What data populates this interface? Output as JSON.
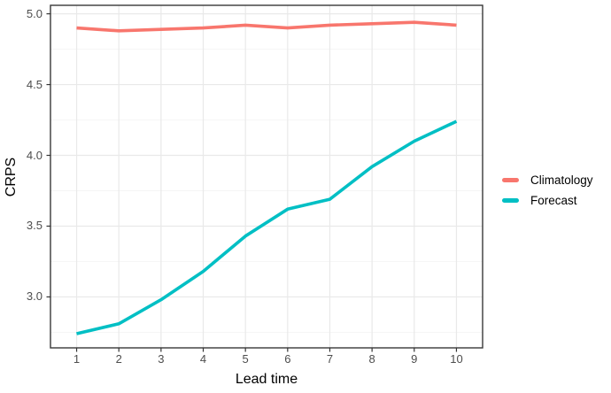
{
  "chart_data": {
    "type": "line",
    "title": "",
    "xlabel": "Lead time",
    "ylabel": "CRPS",
    "x": [
      1,
      2,
      3,
      4,
      5,
      6,
      7,
      8,
      9,
      10
    ],
    "series": [
      {
        "name": "Climatology",
        "color": "#F8766D",
        "values": [
          4.9,
          4.88,
          4.89,
          4.9,
          4.92,
          4.9,
          4.92,
          4.93,
          4.94,
          4.92
        ]
      },
      {
        "name": "Forecast",
        "color": "#00BFC4",
        "values": [
          2.74,
          2.81,
          2.98,
          3.18,
          3.43,
          3.62,
          3.69,
          3.92,
          4.1,
          4.24
        ]
      }
    ],
    "xlim": [
      0.38,
      10.62
    ],
    "ylim": [
      2.64,
      5.06
    ],
    "x_ticks": [
      "1",
      "2",
      "3",
      "4",
      "5",
      "6",
      "7",
      "8",
      "9",
      "10"
    ],
    "y_ticks": [
      "3.0",
      "3.5",
      "4.0",
      "4.5",
      "5.0"
    ],
    "y_minor_gridlines": [
      2.75,
      3.25,
      3.75,
      4.25,
      4.75
    ],
    "grid": true,
    "legend_position": "right",
    "colors": {
      "panel_border": "#383838",
      "tick_mark": "#333333",
      "tick_text": "#4d4d4d",
      "grid_major": "#e9e9e9",
      "grid_minor": "#f4f4f4",
      "background": "#ffffff"
    }
  }
}
